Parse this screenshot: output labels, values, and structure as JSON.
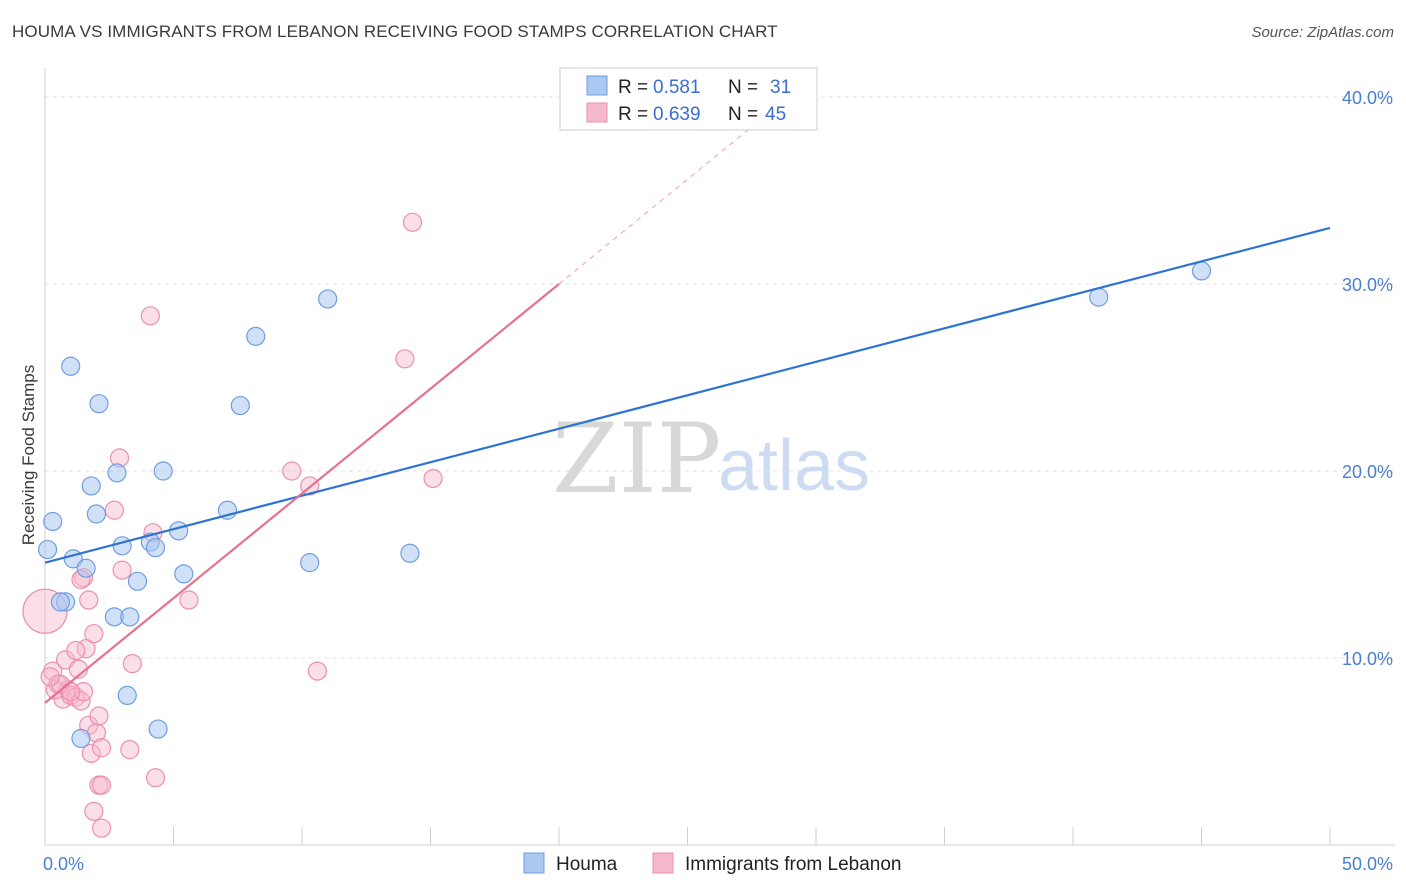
{
  "header": {
    "title": "HOUMA VS IMMIGRANTS FROM LEBANON RECEIVING FOOD STAMPS CORRELATION CHART",
    "source": "Source: ZipAtlas.com"
  },
  "watermark": {
    "zip": "ZIP",
    "atlas": "atlas"
  },
  "colors": {
    "blue_fill": "#aac8f0",
    "blue_stroke": "#6f9ee0",
    "blue_line": "#2f74d0",
    "pink_fill": "#f6b8cc",
    "pink_stroke": "#ec8fb0",
    "pink_line": "#e8708f"
  },
  "legend": {
    "rows": [
      {
        "r_label": "R =",
        "r_value": "0.581",
        "n_label": "N =",
        "n_value": "31"
      },
      {
        "r_label": "R =",
        "r_value": "0.639",
        "n_label": "N =",
        "n_value": "45"
      }
    ]
  },
  "chart_data": {
    "type": "scatter",
    "title": "HOUMA VS IMMIGRANTS FROM LEBANON RECEIVING FOOD STAMPS CORRELATION CHART",
    "xlabel": "",
    "ylabel": "Receiving Food Stamps",
    "xlim": [
      0,
      50
    ],
    "ylim": [
      0,
      40
    ],
    "x_tick_labels": [
      "0.0%",
      "50.0%"
    ],
    "y_tick_labels": [
      "10.0%",
      "20.0%",
      "30.0%",
      "40.0%"
    ],
    "y_ticks": [
      10,
      20,
      30,
      40
    ],
    "series": [
      {
        "name": "Houma",
        "r": 0.581,
        "n": 31,
        "trend": {
          "x": [
            0,
            50
          ],
          "y": [
            15.1,
            33.0
          ]
        },
        "points": [
          [
            0.1,
            15.8
          ],
          [
            0.3,
            17.3
          ],
          [
            1.0,
            25.6
          ],
          [
            1.1,
            15.3
          ],
          [
            0.8,
            13.0
          ],
          [
            1.6,
            14.8
          ],
          [
            1.8,
            19.2
          ],
          [
            2.0,
            17.7
          ],
          [
            2.1,
            23.6
          ],
          [
            2.8,
            19.9
          ],
          [
            2.7,
            12.2
          ],
          [
            3.0,
            16.0
          ],
          [
            3.3,
            12.2
          ],
          [
            3.6,
            14.1
          ],
          [
            4.1,
            16.2
          ],
          [
            4.3,
            15.9
          ],
          [
            4.6,
            20.0
          ],
          [
            5.2,
            16.8
          ],
          [
            5.4,
            14.5
          ],
          [
            7.1,
            17.9
          ],
          [
            7.6,
            23.5
          ],
          [
            8.2,
            27.2
          ],
          [
            10.3,
            15.1
          ],
          [
            11.0,
            29.2
          ],
          [
            14.2,
            15.6
          ],
          [
            3.2,
            8.0
          ],
          [
            4.4,
            6.2
          ],
          [
            1.4,
            5.7
          ],
          [
            41.0,
            29.3
          ],
          [
            45.0,
            30.7
          ],
          [
            0.6,
            13.0
          ]
        ]
      },
      {
        "name": "Immigrants from Lebanon",
        "r": 0.639,
        "n": 45,
        "trend": {
          "x": [
            0,
            20
          ],
          "y": [
            7.6,
            30.0
          ]
        },
        "trend_dashed": {
          "x": [
            20,
            27.5
          ],
          "y": [
            30.0,
            38.4
          ]
        },
        "points": [
          [
            0.0,
            12.5
          ],
          [
            0.3,
            9.3
          ],
          [
            0.5,
            8.6
          ],
          [
            0.7,
            7.8
          ],
          [
            0.8,
            9.9
          ],
          [
            0.9,
            8.3
          ],
          [
            1.0,
            8.0
          ],
          [
            1.2,
            7.9
          ],
          [
            1.3,
            9.4
          ],
          [
            1.4,
            7.7
          ],
          [
            1.5,
            8.2
          ],
          [
            1.6,
            10.5
          ],
          [
            1.2,
            10.4
          ],
          [
            1.5,
            14.3
          ],
          [
            1.7,
            6.4
          ],
          [
            1.8,
            4.9
          ],
          [
            1.9,
            11.3
          ],
          [
            1.7,
            13.1
          ],
          [
            2.0,
            6.0
          ],
          [
            2.1,
            6.9
          ],
          [
            2.2,
            5.2
          ],
          [
            2.1,
            3.2
          ],
          [
            2.2,
            3.2
          ],
          [
            1.9,
            1.8
          ],
          [
            2.2,
            0.9
          ],
          [
            2.7,
            17.9
          ],
          [
            2.9,
            20.7
          ],
          [
            3.0,
            14.7
          ],
          [
            3.4,
            9.7
          ],
          [
            3.3,
            5.1
          ],
          [
            4.1,
            28.3
          ],
          [
            4.2,
            16.7
          ],
          [
            4.3,
            3.6
          ],
          [
            5.6,
            13.1
          ],
          [
            9.6,
            20.0
          ],
          [
            10.3,
            19.2
          ],
          [
            10.6,
            9.3
          ],
          [
            14.0,
            26.0
          ],
          [
            14.3,
            33.3
          ],
          [
            15.1,
            19.6
          ],
          [
            0.4,
            8.3
          ],
          [
            0.6,
            8.6
          ],
          [
            1.4,
            14.2
          ],
          [
            0.2,
            9.0
          ],
          [
            1.0,
            8.2
          ]
        ]
      }
    ]
  },
  "bottom_legend": {
    "items": [
      "Houma",
      "Immigrants from Lebanon"
    ]
  }
}
